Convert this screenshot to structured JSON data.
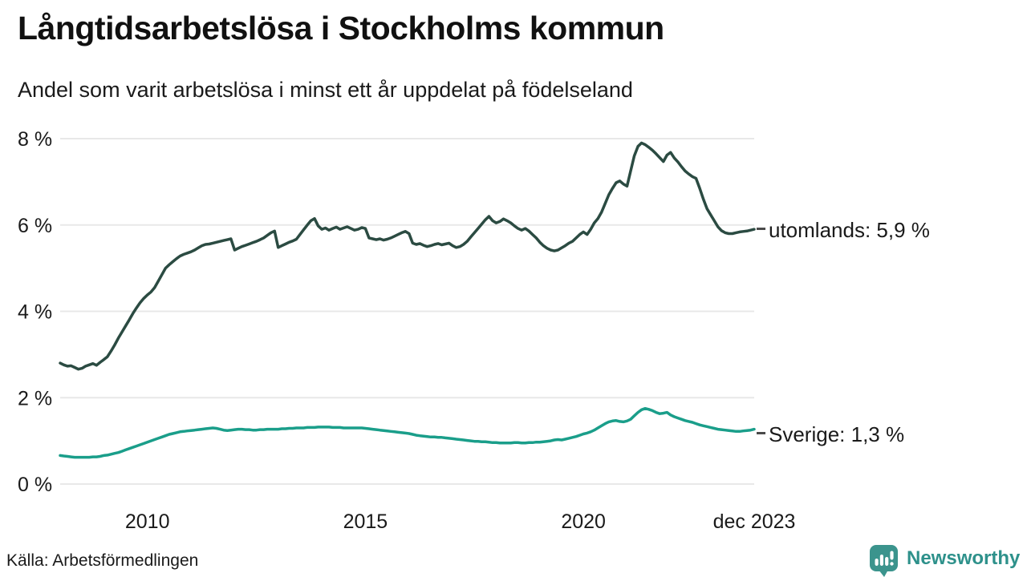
{
  "header": {
    "title": "Långtidsarbetslösa i Stockholms kommun",
    "subtitle": "Andel som varit arbetslösa i minst ett år uppdelat på födelseland"
  },
  "footer": {
    "source": "Källa: Arbetsförmedlingen",
    "brand": "Newsworthy",
    "brand_color": "#2E918B",
    "brand_icon": "speech-bubble-bar-chart-icon",
    "brand_icon_color": "#3B948D"
  },
  "chart_data": {
    "type": "line",
    "title": "Långtidsarbetslösa i Stockholms kommun",
    "subtitle": "Andel som varit arbetslösa i minst ett år uppdelat på födelseland",
    "x_unit": "month",
    "x_start": "jan 2008",
    "x_end": "dec 2023",
    "x_range": [
      2008.0,
      2023.917
    ],
    "ylim": [
      0,
      8
    ],
    "grid": "horizontal",
    "grid_color": "#E8E8E8",
    "legend": "end-of-line labels",
    "yticks": [
      {
        "value": 0,
        "label": "0 %"
      },
      {
        "value": 2,
        "label": "2 %"
      },
      {
        "value": 4,
        "label": "4 %"
      },
      {
        "value": 6,
        "label": "6 %"
      },
      {
        "value": 8,
        "label": "8 %"
      }
    ],
    "xticks": [
      {
        "year": 2010.0,
        "label": "2010"
      },
      {
        "year": 2015.0,
        "label": "2015"
      },
      {
        "year": 2020.0,
        "label": "2020"
      },
      {
        "year": 2023.917,
        "label": "dec 2023"
      }
    ],
    "series": [
      {
        "name": "utomlands",
        "end_label": "utomlands: 5,9 %",
        "last_value": 5.9,
        "color": "#2B4B42",
        "values": [
          2.8,
          2.76,
          2.73,
          2.74,
          2.7,
          2.66,
          2.68,
          2.73,
          2.76,
          2.79,
          2.75,
          2.82,
          2.88,
          2.95,
          3.08,
          3.22,
          3.38,
          3.52,
          3.66,
          3.8,
          3.95,
          4.08,
          4.2,
          4.3,
          4.38,
          4.45,
          4.55,
          4.7,
          4.85,
          5.0,
          5.08,
          5.15,
          5.22,
          5.28,
          5.32,
          5.35,
          5.38,
          5.42,
          5.47,
          5.52,
          5.55,
          5.56,
          5.58,
          5.6,
          5.62,
          5.64,
          5.66,
          5.68,
          5.42,
          5.46,
          5.5,
          5.53,
          5.56,
          5.59,
          5.62,
          5.66,
          5.7,
          5.76,
          5.82,
          5.86,
          5.48,
          5.52,
          5.56,
          5.6,
          5.63,
          5.67,
          5.78,
          5.89,
          6.0,
          6.1,
          6.15,
          5.98,
          5.9,
          5.93,
          5.88,
          5.92,
          5.95,
          5.9,
          5.93,
          5.96,
          5.92,
          5.88,
          5.9,
          5.94,
          5.92,
          5.7,
          5.68,
          5.66,
          5.68,
          5.65,
          5.67,
          5.7,
          5.74,
          5.78,
          5.82,
          5.85,
          5.8,
          5.58,
          5.55,
          5.57,
          5.53,
          5.5,
          5.52,
          5.55,
          5.57,
          5.54,
          5.56,
          5.58,
          5.52,
          5.48,
          5.5,
          5.55,
          5.62,
          5.72,
          5.82,
          5.92,
          6.02,
          6.12,
          6.2,
          6.1,
          6.05,
          6.08,
          6.14,
          6.1,
          6.05,
          5.98,
          5.92,
          5.88,
          5.92,
          5.86,
          5.78,
          5.7,
          5.6,
          5.52,
          5.46,
          5.42,
          5.4,
          5.42,
          5.47,
          5.52,
          5.58,
          5.62,
          5.7,
          5.78,
          5.84,
          5.78,
          5.9,
          6.05,
          6.15,
          6.3,
          6.5,
          6.7,
          6.85,
          6.98,
          7.02,
          6.95,
          6.9,
          7.25,
          7.6,
          7.82,
          7.9,
          7.86,
          7.8,
          7.73,
          7.65,
          7.56,
          7.47,
          7.62,
          7.68,
          7.55,
          7.46,
          7.35,
          7.25,
          7.18,
          7.12,
          7.08,
          6.85,
          6.6,
          6.38,
          6.24,
          6.1,
          5.96,
          5.87,
          5.82,
          5.8,
          5.8,
          5.82,
          5.84,
          5.85,
          5.86,
          5.88,
          5.9
        ]
      },
      {
        "name": "Sverige",
        "end_label": "Sverige: 1,3 %",
        "last_value": 1.3,
        "color": "#1A9E8A",
        "values": [
          0.66,
          0.65,
          0.64,
          0.63,
          0.62,
          0.62,
          0.62,
          0.62,
          0.62,
          0.63,
          0.63,
          0.64,
          0.66,
          0.67,
          0.69,
          0.71,
          0.73,
          0.76,
          0.79,
          0.82,
          0.85,
          0.88,
          0.91,
          0.94,
          0.97,
          1.0,
          1.03,
          1.06,
          1.09,
          1.12,
          1.15,
          1.17,
          1.19,
          1.21,
          1.22,
          1.23,
          1.24,
          1.25,
          1.26,
          1.27,
          1.28,
          1.29,
          1.3,
          1.29,
          1.27,
          1.25,
          1.24,
          1.25,
          1.26,
          1.27,
          1.27,
          1.26,
          1.26,
          1.25,
          1.25,
          1.26,
          1.26,
          1.27,
          1.27,
          1.27,
          1.27,
          1.28,
          1.28,
          1.29,
          1.29,
          1.3,
          1.3,
          1.3,
          1.31,
          1.31,
          1.31,
          1.32,
          1.32,
          1.32,
          1.32,
          1.31,
          1.31,
          1.31,
          1.3,
          1.3,
          1.3,
          1.3,
          1.3,
          1.3,
          1.29,
          1.28,
          1.27,
          1.26,
          1.25,
          1.24,
          1.23,
          1.22,
          1.21,
          1.2,
          1.19,
          1.18,
          1.17,
          1.15,
          1.13,
          1.12,
          1.11,
          1.1,
          1.09,
          1.09,
          1.08,
          1.08,
          1.07,
          1.06,
          1.05,
          1.04,
          1.03,
          1.02,
          1.01,
          1.0,
          0.99,
          0.99,
          0.98,
          0.98,
          0.97,
          0.96,
          0.96,
          0.95,
          0.95,
          0.95,
          0.95,
          0.96,
          0.96,
          0.95,
          0.95,
          0.96,
          0.96,
          0.97,
          0.97,
          0.98,
          0.99,
          1.0,
          1.02,
          1.03,
          1.02,
          1.04,
          1.06,
          1.08,
          1.1,
          1.13,
          1.16,
          1.18,
          1.21,
          1.25,
          1.3,
          1.35,
          1.4,
          1.44,
          1.46,
          1.47,
          1.45,
          1.44,
          1.46,
          1.5,
          1.58,
          1.66,
          1.72,
          1.75,
          1.73,
          1.7,
          1.66,
          1.63,
          1.64,
          1.66,
          1.6,
          1.56,
          1.53,
          1.5,
          1.47,
          1.45,
          1.43,
          1.4,
          1.37,
          1.35,
          1.33,
          1.31,
          1.29,
          1.27,
          1.26,
          1.25,
          1.24,
          1.23,
          1.22,
          1.22,
          1.23,
          1.24,
          1.25,
          1.27
        ]
      }
    ]
  }
}
